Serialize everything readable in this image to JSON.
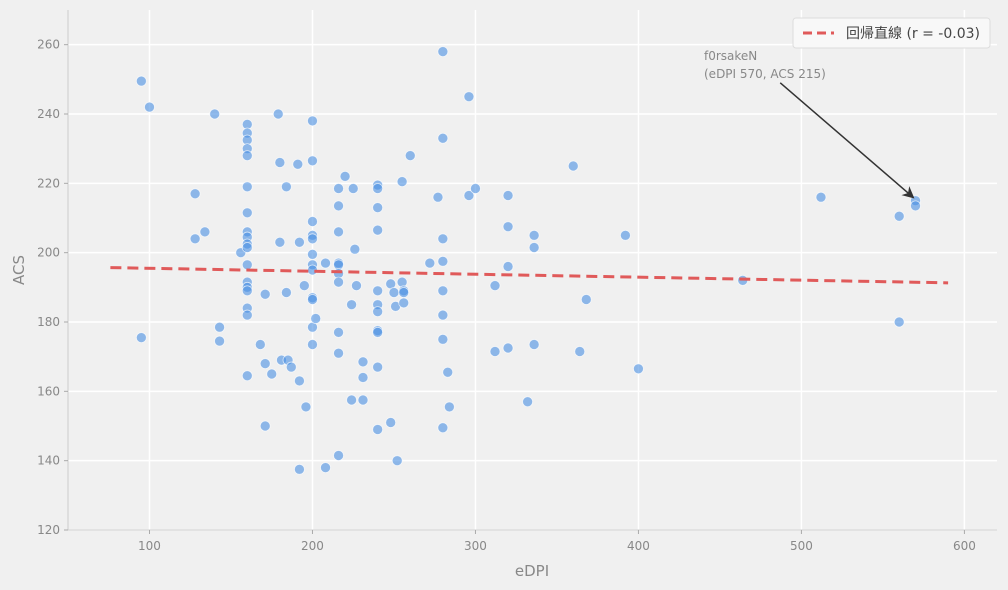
{
  "chart_data": {
    "type": "scatter",
    "xlabel": "eDPI",
    "ylabel": "ACS",
    "xlim": [
      50,
      620
    ],
    "ylim": [
      120,
      270
    ],
    "xticks": [
      100,
      200,
      300,
      400,
      500,
      600
    ],
    "yticks": [
      120,
      140,
      160,
      180,
      200,
      220,
      240,
      260
    ],
    "grid": true,
    "legend_position": "top-right",
    "colors": {
      "points": "#4a90e2",
      "trend": "#e05a5a",
      "background": "#f0f0f0",
      "grid": "#ffffff",
      "annotation": "#333333"
    },
    "points": [
      [
        95,
        249.5
      ],
      [
        100,
        242
      ],
      [
        95,
        175.5
      ],
      [
        128,
        217
      ],
      [
        128,
        204
      ],
      [
        134,
        206
      ],
      [
        140,
        240
      ],
      [
        143,
        178.5
      ],
      [
        143,
        174.5
      ],
      [
        156,
        200
      ],
      [
        160,
        237
      ],
      [
        160,
        234.5
      ],
      [
        160,
        232.5
      ],
      [
        160,
        230
      ],
      [
        160,
        228
      ],
      [
        160,
        219
      ],
      [
        160,
        211.5
      ],
      [
        160,
        206
      ],
      [
        160,
        204.5
      ],
      [
        160,
        202.5
      ],
      [
        160,
        201.5
      ],
      [
        160,
        196.5
      ],
      [
        160,
        191.5
      ],
      [
        160,
        190
      ],
      [
        160,
        189
      ],
      [
        160,
        184
      ],
      [
        160,
        182
      ],
      [
        160,
        164.5
      ],
      [
        168,
        173.5
      ],
      [
        171,
        188
      ],
      [
        171,
        168
      ],
      [
        171,
        150
      ],
      [
        175,
        165
      ],
      [
        179,
        240
      ],
      [
        180,
        226
      ],
      [
        180,
        203
      ],
      [
        181,
        169
      ],
      [
        184,
        219
      ],
      [
        184,
        188.5
      ],
      [
        185,
        169
      ],
      [
        187,
        167
      ],
      [
        191,
        225.5
      ],
      [
        192,
        203
      ],
      [
        192,
        163
      ],
      [
        192,
        137.5
      ],
      [
        195,
        190.5
      ],
      [
        196,
        155.5
      ],
      [
        200,
        238
      ],
      [
        200,
        226.5
      ],
      [
        200,
        209
      ],
      [
        200,
        205
      ],
      [
        200,
        204
      ],
      [
        200,
        199.5
      ],
      [
        200,
        196.5
      ],
      [
        200,
        195
      ],
      [
        200,
        187
      ],
      [
        200,
        186.5
      ],
      [
        200,
        178.5
      ],
      [
        200,
        173.5
      ],
      [
        202,
        181
      ],
      [
        208,
        197
      ],
      [
        208,
        138
      ],
      [
        216,
        218.5
      ],
      [
        216,
        213.5
      ],
      [
        216,
        206
      ],
      [
        216,
        197
      ],
      [
        216,
        196.5
      ],
      [
        216,
        194
      ],
      [
        216,
        191.5
      ],
      [
        216,
        177
      ],
      [
        216,
        171
      ],
      [
        216,
        141.5
      ],
      [
        220,
        222
      ],
      [
        224,
        185
      ],
      [
        224,
        157.5
      ],
      [
        225,
        218.5
      ],
      [
        226,
        201
      ],
      [
        227,
        190.5
      ],
      [
        231,
        168.5
      ],
      [
        231,
        164
      ],
      [
        231,
        157.5
      ],
      [
        240,
        219.5
      ],
      [
        240,
        218.5
      ],
      [
        240,
        213
      ],
      [
        240,
        206.5
      ],
      [
        240,
        189
      ],
      [
        240,
        185
      ],
      [
        240,
        183
      ],
      [
        240,
        177.5
      ],
      [
        240,
        177
      ],
      [
        240,
        167
      ],
      [
        240,
        149
      ],
      [
        248,
        191
      ],
      [
        248,
        151
      ],
      [
        250,
        188.5
      ],
      [
        251,
        184.5
      ],
      [
        252,
        140
      ],
      [
        255,
        220.5
      ],
      [
        255,
        191.5
      ],
      [
        256,
        189
      ],
      [
        256,
        188.5
      ],
      [
        256,
        185.5
      ],
      [
        260,
        228
      ],
      [
        272,
        197
      ],
      [
        277,
        216
      ],
      [
        280,
        258
      ],
      [
        280,
        233
      ],
      [
        280,
        204
      ],
      [
        280,
        197.5
      ],
      [
        280,
        189
      ],
      [
        280,
        182
      ],
      [
        280,
        175
      ],
      [
        280,
        149.5
      ],
      [
        283,
        165.5
      ],
      [
        284,
        155.5
      ],
      [
        296,
        245
      ],
      [
        296,
        216.5
      ],
      [
        300,
        218.5
      ],
      [
        312,
        190.5
      ],
      [
        312,
        171.5
      ],
      [
        320,
        216.5
      ],
      [
        320,
        207.5
      ],
      [
        320,
        196
      ],
      [
        320,
        172.5
      ],
      [
        332,
        157
      ],
      [
        336,
        205
      ],
      [
        336,
        201.5
      ],
      [
        336,
        173.5
      ],
      [
        360,
        225
      ],
      [
        364,
        171.5
      ],
      [
        368,
        186.5
      ],
      [
        392,
        205
      ],
      [
        400,
        166.5
      ],
      [
        464,
        192
      ],
      [
        512,
        216
      ],
      [
        560,
        210.5
      ],
      [
        560,
        180
      ],
      [
        570,
        215
      ],
      [
        570,
        213.5
      ]
    ],
    "trend": {
      "x_start": 76,
      "x_end": 590,
      "y_start": 195.7,
      "y_end": 191.3
    },
    "legend_label": "回帰直線 (r = -0.03)",
    "annotation": {
      "line1": "f0rsakeN",
      "line2": "(eDPI 570, ACS 215)",
      "target": [
        570,
        215
      ],
      "text_anchor": [
        487,
        249
      ]
    }
  }
}
